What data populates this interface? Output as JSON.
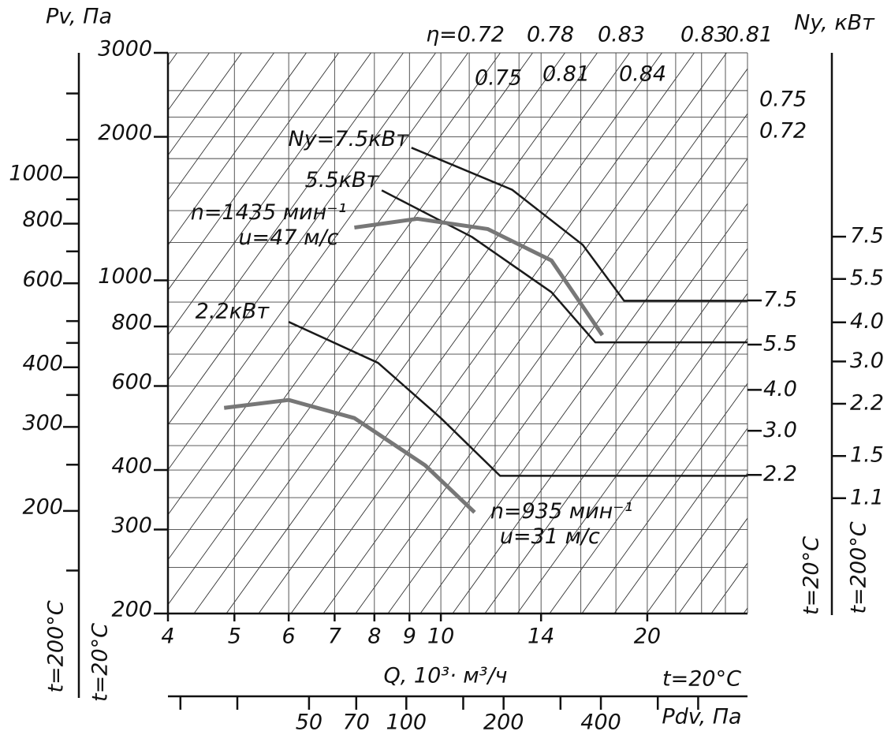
{
  "chart_data": {
    "type": "fan-performance",
    "x_label": "Q, 10³· м³/ч",
    "y_label": "Pv, Па",
    "y2_label": "Ny, кВт",
    "xlog": true,
    "xlim": [
      4,
      28
    ],
    "xticks": [
      4,
      5,
      6,
      7,
      8,
      9,
      10,
      14,
      20
    ],
    "xgrid": [
      4,
      5,
      6,
      7,
      8,
      9,
      10,
      11,
      12,
      13,
      14,
      16,
      18,
      20,
      22,
      24,
      26
    ],
    "ylog": true,
    "ylim": [
      200,
      3000
    ],
    "yticks": [
      200,
      300,
      400,
      600,
      800,
      1000,
      2000,
      3000
    ],
    "ygrid": [
      200,
      250,
      300,
      350,
      400,
      450,
      500,
      600,
      700,
      800,
      900,
      1000,
      1200,
      1400,
      1600,
      1800,
      2000,
      2200,
      2500,
      3000
    ],
    "y_condition": "t=20°C",
    "y2lim": [
      0.83,
      42.8
    ],
    "y2ticks": [
      {
        "value": 2.2,
        "label": "2.2"
      },
      {
        "value": 3,
        "label": "3.0"
      },
      {
        "value": 4,
        "label": "4.0"
      },
      {
        "value": 5.5,
        "label": "5.5"
      },
      {
        "value": 7.5,
        "label": "7.5"
      }
    ],
    "y2_condition": "t=20°C",
    "series": [
      {
        "name": "Ny=7.5кВт",
        "color": "#1a1a1a",
        "x": [
          9.06,
          12.7,
          16.1,
          18.5,
          28
        ],
        "values": [
          1897,
          1549,
          1187,
          906,
          906
        ]
      },
      {
        "name": "5.5кВт",
        "color": "#1a1a1a",
        "x": [
          8.2,
          11.1,
          14.5,
          16.8,
          28
        ],
        "values": [
          1544,
          1233,
          944,
          741,
          741
        ]
      },
      {
        "name": "2.2кВт",
        "color": "#1a1a1a",
        "x": [
          6.0,
          8.1,
          10,
          12.2,
          28
        ],
        "values": [
          818,
          671,
          514,
          389,
          389
        ]
      },
      {
        "name": "n=1435 мин⁻¹",
        "speed": "u=47 м/с",
        "color": "#777777",
        "x": [
          7.48,
          9.24,
          11.7,
          14.5,
          17.2
        ],
        "values": [
          1290,
          1346,
          1281,
          1100,
          767
        ]
      },
      {
        "name": "n=935 мин⁻¹",
        "speed": "u=31 м/с",
        "color": "#777777",
        "x": [
          4.83,
          6.0,
          7.48,
          9.49,
          11.2
        ],
        "values": [
          540,
          561,
          514,
          409,
          326
        ]
      }
    ],
    "efficiency_labels": [
      "η=0.72",
      "0.78",
      "0.83",
      "0.83",
      "0.81",
      "0.75",
      "0.81",
      "0.84",
      "0.75",
      "0.72"
    ],
    "outer_left_axis": {
      "label": "t=200°C",
      "lim": [
        121.9,
        1825
      ],
      "ticks": [
        200,
        300,
        400,
        600,
        800,
        1000
      ],
      "minor_ticks": [
        150,
        250,
        350,
        450,
        500,
        700,
        900,
        1200,
        1500
      ]
    },
    "outer_right_axis": {
      "label": "t=200°C",
      "lim": [
        0.472,
        28.9
      ],
      "ticks": [
        {
          "value": 1.1,
          "label": "1.1"
        },
        {
          "value": 1.5,
          "label": "1.5"
        },
        {
          "value": 2.2,
          "label": "2.2"
        },
        {
          "value": 3,
          "label": "3.0"
        },
        {
          "value": 4,
          "label": "4.0"
        },
        {
          "value": 5.5,
          "label": "5.5"
        },
        {
          "value": 7.5,
          "label": "7.5"
        }
      ]
    },
    "pdv_axis": {
      "label": "Pdv, Па",
      "condition": "t=20°C",
      "lim": [
        18.3,
        1137
      ],
      "ticks": [
        50,
        70,
        100,
        200,
        400
      ],
      "minor_ticks": [
        20,
        30,
        150,
        300,
        600,
        800
      ]
    }
  }
}
